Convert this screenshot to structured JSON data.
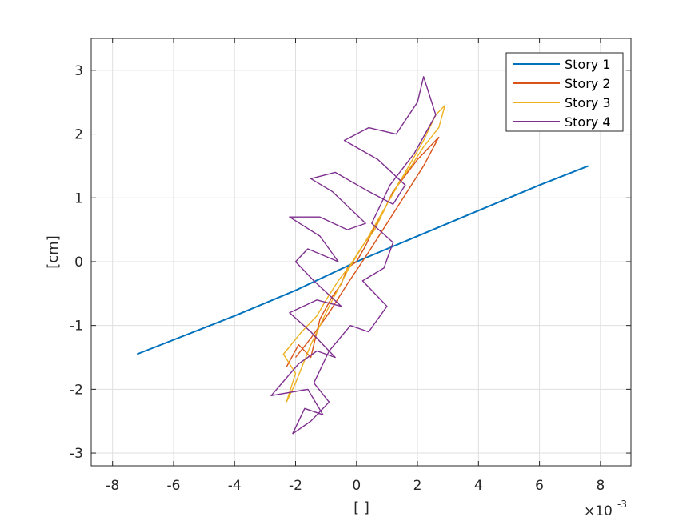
{
  "chart_data": {
    "type": "line",
    "xlabel": "[ ]",
    "ylabel": "[cm]",
    "x_exponent": {
      "base": "×10",
      "power": "-3"
    },
    "xlim": [
      -8.7,
      9.0
    ],
    "ylim": [
      -3.2,
      3.5
    ],
    "xticks": [
      -8,
      -6,
      -4,
      -2,
      0,
      2,
      4,
      6,
      8
    ],
    "yticks": [
      -3,
      -2,
      -1,
      0,
      1,
      2,
      3
    ],
    "xtick_labels": [
      "-8",
      "-6",
      "-4",
      "-2",
      "0",
      "2",
      "4",
      "6",
      "8"
    ],
    "ytick_labels": [
      "-3",
      "-2",
      "-1",
      "0",
      "1",
      "2",
      "3"
    ],
    "grid": true,
    "legend_position": "top-right",
    "series": [
      {
        "name": "Story 1",
        "color": "#0072BD",
        "points": [
          [
            -7.2,
            -1.45
          ],
          [
            -4.0,
            -0.85
          ],
          [
            -2.0,
            -0.45
          ],
          [
            0.0,
            0.0
          ],
          [
            2.0,
            0.4
          ],
          [
            4.0,
            0.8
          ],
          [
            6.0,
            1.2
          ],
          [
            7.6,
            1.5
          ]
        ]
      },
      {
        "name": "Story 2",
        "color": "#D95319",
        "points": [
          [
            -2.3,
            -1.65
          ],
          [
            -1.9,
            -1.3
          ],
          [
            -1.5,
            -1.5
          ],
          [
            -1.2,
            -0.9
          ],
          [
            -0.8,
            -0.55
          ],
          [
            -0.5,
            -0.35
          ],
          [
            -0.3,
            -0.1
          ],
          [
            0.0,
            0.0
          ],
          [
            0.3,
            0.25
          ],
          [
            0.6,
            0.55
          ],
          [
            0.9,
            0.8
          ],
          [
            1.2,
            1.1
          ],
          [
            1.6,
            1.35
          ],
          [
            2.0,
            1.6
          ],
          [
            2.4,
            1.8
          ],
          [
            2.7,
            1.95
          ],
          [
            2.2,
            1.5
          ],
          [
            1.6,
            1.05
          ],
          [
            1.0,
            0.6
          ],
          [
            0.4,
            0.15
          ],
          [
            -0.3,
            -0.35
          ],
          [
            -0.9,
            -0.8
          ],
          [
            -1.5,
            -1.2
          ],
          [
            -2.0,
            -1.5
          ]
        ]
      },
      {
        "name": "Story 3",
        "color": "#EDB120",
        "points": [
          [
            -2.3,
            -2.2
          ],
          [
            -2.0,
            -1.75
          ],
          [
            -2.4,
            -1.45
          ],
          [
            -1.8,
            -1.1
          ],
          [
            -1.3,
            -0.85
          ],
          [
            -1.0,
            -0.6
          ],
          [
            -0.6,
            -0.3
          ],
          [
            -0.2,
            -0.05
          ],
          [
            0.2,
            0.25
          ],
          [
            0.6,
            0.5
          ],
          [
            1.0,
            0.9
          ],
          [
            1.4,
            1.25
          ],
          [
            1.8,
            1.5
          ],
          [
            2.2,
            1.8
          ],
          [
            2.7,
            2.1
          ],
          [
            2.9,
            2.45
          ],
          [
            2.6,
            2.3
          ],
          [
            2.2,
            1.9
          ],
          [
            1.6,
            1.4
          ],
          [
            1.0,
            0.9
          ],
          [
            0.4,
            0.4
          ],
          [
            -0.3,
            -0.15
          ],
          [
            -0.9,
            -0.7
          ],
          [
            -1.5,
            -1.3
          ],
          [
            -2.0,
            -1.9
          ],
          [
            -2.3,
            -2.2
          ]
        ]
      },
      {
        "name": "Story 4",
        "color": "#7E2F8E",
        "points": [
          [
            -2.1,
            -2.7
          ],
          [
            -1.7,
            -2.3
          ],
          [
            -1.1,
            -2.4
          ],
          [
            -1.6,
            -2.0
          ],
          [
            -2.8,
            -2.1
          ],
          [
            -1.9,
            -1.6
          ],
          [
            -1.3,
            -1.4
          ],
          [
            -0.7,
            -1.5
          ],
          [
            -1.5,
            -1.1
          ],
          [
            -2.2,
            -0.8
          ],
          [
            -1.3,
            -0.6
          ],
          [
            -0.5,
            -0.7
          ],
          [
            -1.4,
            -0.3
          ],
          [
            -2.0,
            0.0
          ],
          [
            -1.6,
            0.2
          ],
          [
            -0.6,
            0.0
          ],
          [
            -1.2,
            0.4
          ],
          [
            -2.2,
            0.7
          ],
          [
            -1.2,
            0.7
          ],
          [
            -0.3,
            0.5
          ],
          [
            0.3,
            0.6
          ],
          [
            -0.8,
            1.1
          ],
          [
            -1.5,
            1.3
          ],
          [
            -0.7,
            1.4
          ],
          [
            0.4,
            1.1
          ],
          [
            1.2,
            0.9
          ],
          [
            1.6,
            1.2
          ],
          [
            0.7,
            1.6
          ],
          [
            -0.4,
            1.9
          ],
          [
            0.4,
            2.1
          ],
          [
            1.3,
            2.0
          ],
          [
            2.0,
            2.5
          ],
          [
            2.2,
            2.9
          ],
          [
            2.6,
            2.3
          ],
          [
            1.9,
            1.7
          ],
          [
            1.1,
            1.2
          ],
          [
            0.5,
            0.6
          ],
          [
            1.2,
            0.3
          ],
          [
            0.9,
            -0.1
          ],
          [
            0.2,
            -0.3
          ],
          [
            1.0,
            -0.7
          ],
          [
            0.4,
            -1.1
          ],
          [
            -0.2,
            -1.0
          ],
          [
            -0.9,
            -1.4
          ],
          [
            -1.4,
            -1.9
          ],
          [
            -0.9,
            -2.2
          ],
          [
            -1.5,
            -2.5
          ],
          [
            -2.1,
            -2.7
          ]
        ]
      }
    ]
  }
}
